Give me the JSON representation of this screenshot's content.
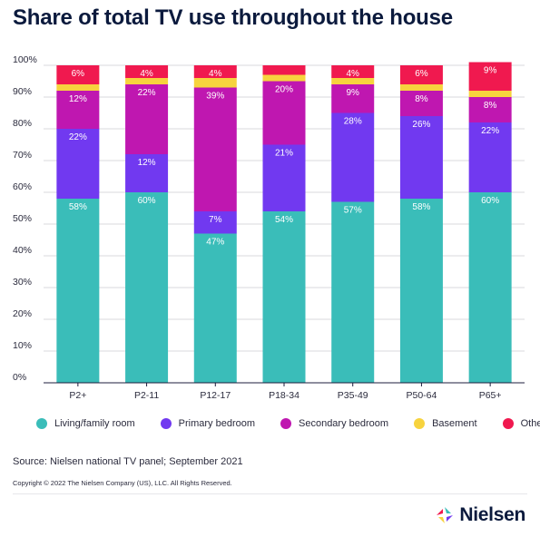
{
  "title": "Share of total TV use throughout the house",
  "chart_data": {
    "type": "bar",
    "stacked": true,
    "categories": [
      "P2+",
      "P2-11",
      "P12-17",
      "P18-34",
      "P35-49",
      "P50-64",
      "P65+"
    ],
    "series": [
      {
        "name": "Living/family room",
        "color": "#3abdb9",
        "values": [
          58,
          60,
          47,
          54,
          57,
          58,
          60
        ],
        "labels": [
          "58%",
          "60%",
          "47%",
          "54%",
          "57%",
          "58%",
          "60%"
        ]
      },
      {
        "name": "Primary bedroom",
        "color": "#7139f0",
        "values": [
          22,
          12,
          7,
          21,
          28,
          26,
          22
        ],
        "labels": [
          "22%",
          "12%",
          "7%",
          "21%",
          "28%",
          "26%",
          "22%"
        ]
      },
      {
        "name": "Secondary bedroom",
        "color": "#bf17b0",
        "values": [
          12,
          22,
          39,
          20,
          9,
          8,
          8
        ],
        "labels": [
          "12%",
          "22%",
          "39%",
          "20%",
          "9%",
          "8%",
          "8%"
        ]
      },
      {
        "name": "Basement",
        "color": "#f7d33e",
        "values": [
          2,
          2,
          3,
          2,
          2,
          2,
          2
        ],
        "labels": [
          "",
          "",
          "",
          "",
          "",
          "",
          ""
        ]
      },
      {
        "name": "Other",
        "color": "#f0194f",
        "values": [
          6,
          4,
          4,
          3,
          4,
          6,
          9
        ],
        "labels": [
          "6%",
          "4%",
          "4%",
          "",
          "4%",
          "6%",
          "9%"
        ]
      }
    ],
    "y_ticks": [
      "0%",
      "10%",
      "20%",
      "30%",
      "40%",
      "50%",
      "60%",
      "70%",
      "80%",
      "90%",
      "100%"
    ],
    "ylim": [
      0,
      100
    ],
    "grid": true,
    "legend_position": "bottom"
  },
  "legend": [
    {
      "label": "Living/family room",
      "color": "#3abdb9"
    },
    {
      "label": "Primary bedroom",
      "color": "#7139f0"
    },
    {
      "label": "Secondary bedroom",
      "color": "#bf17b0"
    },
    {
      "label": "Basement",
      "color": "#f7d33e"
    },
    {
      "label": "Other",
      "color": "#f0194f"
    }
  ],
  "source": "Source: Nielsen national TV panel; September 2021",
  "copyright": "Copyright © 2022 The Nielsen Company (US), LLC. All Rights Reserved.",
  "brand": {
    "name": "Nielsen",
    "logo_colors": [
      "#f0194f",
      "#3abdb9",
      "#7139f0",
      "#f7d33e"
    ]
  }
}
